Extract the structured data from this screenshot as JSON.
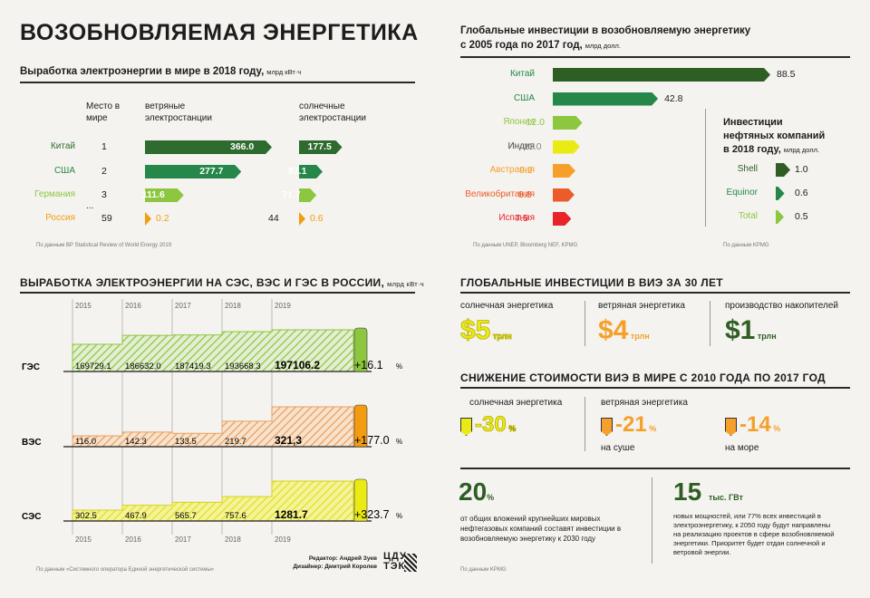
{
  "title": "ВОЗОБНОВЛЯЕМАЯ ЭНЕРГЕТИКА",
  "colors": {
    "dark": "#2f5e25",
    "green": "#25884a",
    "light": "#8dc63f",
    "yellow": "#eaea14",
    "orange": "#f5a02a",
    "red_orange": "#ec5c2a",
    "red": "#e8232a",
    "china": "#2d6b2e",
    "russia": "#f39c12"
  },
  "gen2018": {
    "title": "Выработка электроэнергии в мире в 2018 году,",
    "unit": "млрд кВт·ч",
    "col_place": "Место в мире",
    "col_wind": "ветряные электростанции",
    "col_solar": "солнечные электростанции",
    "ellipsis": "...",
    "rows": [
      {
        "country": "Китай",
        "place": "1",
        "wind": "366.0",
        "solar": "177.5",
        "wind_v": 366.0,
        "solar_v": 177.5
      },
      {
        "country": "США",
        "place": "2",
        "wind": "277.7",
        "solar": "97.1",
        "wind_v": 277.7,
        "solar_v": 97.1
      },
      {
        "country": "Германия",
        "place": "3",
        "wind": "111.6",
        "solar": "71.7",
        "wind_v": 111.6,
        "solar_v": 71.7
      },
      {
        "country": "Россия",
        "place": "59",
        "wind": "0.2",
        "solar": "0.6",
        "solar_place": "44",
        "wind_v": 0.2,
        "solar_v": 0.6
      }
    ],
    "source": "По данным BP Statistical Review of World Energy 2019"
  },
  "invest": {
    "title_1": "Глобальные инвестиции в возобновляемую энергетику",
    "title_2": "с 2005 года по 2017 год,",
    "unit": "млрд долл.",
    "rows": [
      {
        "country": "Китай",
        "value": "88.5",
        "v": 88.5
      },
      {
        "country": "США",
        "value": "42.8",
        "v": 42.8
      },
      {
        "country": "Япония",
        "value": "12.0",
        "v": 12.0
      },
      {
        "country": "Индия",
        "value": "11.0",
        "v": 11.0
      },
      {
        "country": "Австралия",
        "value": "9.2",
        "v": 9.2
      },
      {
        "country": "Великобритания",
        "value": "8.8",
        "v": 8.8
      },
      {
        "country": "Испания",
        "value": "7.5",
        "v": 7.5
      }
    ],
    "source": "По данным UNEP, Bloomberg NEF, KPMG",
    "oil_title_1": "Инвестиции",
    "oil_title_2": "нефтяных компаний",
    "oil_title_3": "в 2018 году,",
    "oil_unit": "млрд долл.",
    "oil_rows": [
      {
        "name": "Shell",
        "value": "1.0",
        "v": 1.0
      },
      {
        "name": "Equinor",
        "value": "0.6",
        "v": 0.6
      },
      {
        "name": "Total",
        "value": "0.5",
        "v": 0.5
      }
    ],
    "oil_source": "По данным KPMG"
  },
  "russia": {
    "title": "ВЫРАБОТКА ЭЛЕКТРОЭНЕРГИИ НА СЭС, ВЭС И ГЭС В РОССИИ,",
    "unit": "млрд кВт·ч",
    "years": [
      "2015",
      "2016",
      "2017",
      "2018",
      "2019"
    ],
    "rows": [
      {
        "label": "ГЭС",
        "values": [
          "169729.1",
          "186632.0",
          "187419.3",
          "193668.3",
          "197106.2"
        ],
        "v": [
          169729.1,
          186632.0,
          187419.3,
          193668.3,
          197106.2
        ],
        "growth": "+16.1",
        "pct": "%"
      },
      {
        "label": "ВЭС",
        "values": [
          "116.0",
          "142.3",
          "133.5",
          "219.7",
          "321,3"
        ],
        "v": [
          116.0,
          142.3,
          133.5,
          219.7,
          321.3
        ],
        "growth": "+177.0",
        "pct": "%"
      },
      {
        "label": "СЭС",
        "values": [
          "302.5",
          "467.9",
          "565.7",
          "757.6",
          "1281.7"
        ],
        "v": [
          302.5,
          467.9,
          565.7,
          757.6,
          1281.7
        ],
        "growth": "+323.7",
        "pct": "%"
      }
    ],
    "source": "По данным «Системного оператора Единой энергетической системы»",
    "editor": "Редактор: Андрей Зуев",
    "designer": "Дизайнер: Дмитрий Королев",
    "logo_1": "ЦДУ",
    "logo_2": "ТЭК"
  },
  "invest30": {
    "title": "ГЛОБАЛЬНЫЕ ИНВЕСТИЦИИ В ВИЭ ЗА 30 ЛЕТ",
    "items": [
      {
        "label": "солнечная энергетика",
        "value": "$5",
        "unit": "трлн"
      },
      {
        "label": "ветряная энергетика",
        "value": "$4",
        "unit": "трлн"
      },
      {
        "label": "производство накопителей",
        "value": "$1",
        "unit": "трлн"
      }
    ]
  },
  "cost": {
    "title": "СНИЖЕНИЕ СТОИМОСТИ ВИЭ В МИРЕ С 2010 ГОДА ПО 2017 ГОД",
    "solar_label": "солнечная энергетика",
    "wind_label": "ветряная энергетика",
    "items": [
      {
        "value": "-30",
        "pct": "%",
        "sub": ""
      },
      {
        "value": "-21",
        "pct": "%",
        "sub": "на суше"
      },
      {
        "value": "-14",
        "pct": "%",
        "sub": "на море"
      }
    ]
  },
  "facts": {
    "f1_value": "20",
    "f1_unit": "%",
    "f1_text": "от общих вложений крупнейших мировых нефтегазовых компаний составят инвестиции в возобновляемую энергетику к 2030 году",
    "f2_value": "15",
    "f2_unit": "тыс. ГВт",
    "f2_text": "новых мощностей, или 77% всех инвестиций в электроэнергетику, к 2050 году будут направлены на реализацию проектов в сфере возобновляемой энергетики. Приоритет будет отдан солнечной и ветровой энергии.",
    "source": "По данным KPMG"
  },
  "chart_data": [
    {
      "type": "bar",
      "title": "Выработка электроэнергии в мире в 2018 году, млрд кВт·ч",
      "categories": [
        "Китай",
        "США",
        "Германия",
        "Россия"
      ],
      "series": [
        {
          "name": "ветряные электростанции",
          "values": [
            366.0,
            277.7,
            111.6,
            0.2
          ]
        },
        {
          "name": "солнечные электростанции",
          "values": [
            177.5,
            97.1,
            71.7,
            0.6
          ]
        }
      ]
    },
    {
      "type": "bar",
      "title": "Глобальные инвестиции в возобновляемую энергетику с 2005 года по 2017 год, млрд долл.",
      "categories": [
        "Китай",
        "США",
        "Япония",
        "Индия",
        "Австралия",
        "Великобритания",
        "Испания"
      ],
      "values": [
        88.5,
        42.8,
        12.0,
        11.0,
        9.2,
        8.8,
        7.5
      ]
    },
    {
      "type": "bar",
      "title": "Инвестиции нефтяных компаний в 2018 году, млрд долл.",
      "categories": [
        "Shell",
        "Equinor",
        "Total"
      ],
      "values": [
        1.0,
        0.6,
        0.5
      ]
    },
    {
      "type": "area",
      "title": "ВЫРАБОТКА ЭЛЕКТРОЭНЕРГИИ НА СЭС, ВЭС И ГЭС В РОССИИ, млрд кВт·ч",
      "x": [
        "2015",
        "2016",
        "2017",
        "2018",
        "2019"
      ],
      "series": [
        {
          "name": "ГЭС",
          "values": [
            169729.1,
            186632.0,
            187419.3,
            193668.3,
            197106.2
          ]
        },
        {
          "name": "ВЭС",
          "values": [
            116.0,
            142.3,
            133.5,
            219.7,
            321.3
          ]
        },
        {
          "name": "СЭС",
          "values": [
            302.5,
            467.9,
            565.7,
            757.6,
            1281.7
          ]
        }
      ]
    }
  ]
}
